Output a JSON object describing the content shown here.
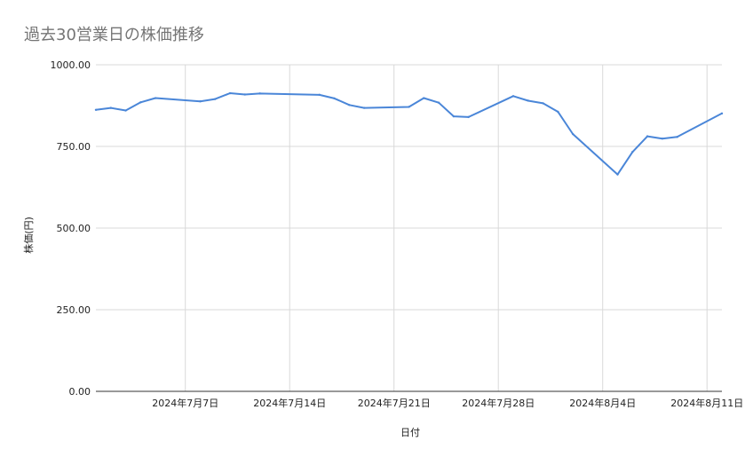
{
  "chart_data": {
    "type": "line",
    "title": "過去30営業日の株価推移",
    "xlabel": "日付",
    "ylabel": "株価(円)",
    "ylim": [
      0,
      1000
    ],
    "y_ticks": [
      "0.00",
      "250.00",
      "500.00",
      "750.00",
      "1000.00"
    ],
    "y_tick_values": [
      0,
      250,
      500,
      750,
      1000
    ],
    "x_ticks": [
      "2024年7月7日",
      "2024年7月14日",
      "2024年7月21日",
      "2024年7月28日",
      "2024年8月4日",
      "2024年8月11日"
    ],
    "x_tick_dates": [
      "2024-07-07",
      "2024-07-14",
      "2024-07-21",
      "2024-07-28",
      "2024-08-04",
      "2024-08-11"
    ],
    "xlim": [
      "2024-07-01",
      "2024-08-12"
    ],
    "grid": true,
    "legend": "none",
    "line_color": "#4a86d8",
    "series": [
      {
        "x": [
          "2024-07-01",
          "2024-07-02",
          "2024-07-03",
          "2024-07-04",
          "2024-07-05",
          "2024-07-08",
          "2024-07-09",
          "2024-07-10",
          "2024-07-11",
          "2024-07-12",
          "2024-07-16",
          "2024-07-17",
          "2024-07-18",
          "2024-07-19",
          "2024-07-22",
          "2024-07-23",
          "2024-07-24",
          "2024-07-25",
          "2024-07-26",
          "2024-07-29",
          "2024-07-30",
          "2024-07-31",
          "2024-08-01",
          "2024-08-02",
          "2024-08-05",
          "2024-08-06",
          "2024-08-07",
          "2024-08-08",
          "2024-08-09",
          "2024-08-12"
        ],
        "values": [
          862,
          868,
          860,
          885,
          898,
          888,
          895,
          913,
          909,
          912,
          908,
          897,
          877,
          868,
          871,
          898,
          884,
          842,
          840,
          904,
          890,
          882,
          856,
          788,
          664,
          733,
          781,
          774,
          779,
          851
        ]
      }
    ]
  }
}
